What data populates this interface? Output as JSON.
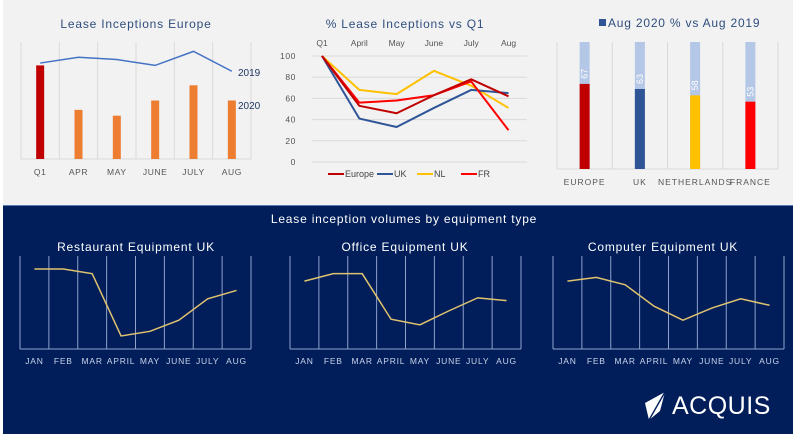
{
  "brand": {
    "name": "ACQUIS",
    "logo_icon": "acquis-kite-logo-icon"
  },
  "colors": {
    "top_bg": "#f2f2f2",
    "bottom_bg": "#011e5a",
    "europe": "#c00000",
    "uk": "#2f5597",
    "nl": "#ffc000",
    "fr": "#ff0000",
    "bars_2020": "#ed7d31",
    "line_2019": "#4472c4",
    "bar_bg": "#b4c7e7",
    "gold_line": "#e0c36e"
  },
  "section_title": "Lease inception volumes by equipment type",
  "chart_data": [
    {
      "id": "europe",
      "type": "bar",
      "title": "Lease Inceptions Europe",
      "categories": [
        "Q1",
        "APR",
        "MAY",
        "JUNE",
        "JULY",
        "AUG"
      ],
      "series": [
        {
          "name": "2020",
          "kind": "bar",
          "values": [
            80,
            42,
            37,
            50,
            63,
            50
          ],
          "colors": [
            "#c00000",
            "#ed7d31",
            "#ed7d31",
            "#ed7d31",
            "#ed7d31",
            "#ed7d31"
          ]
        },
        {
          "name": "2019",
          "kind": "line",
          "values": [
            82,
            87,
            85,
            80,
            92,
            75
          ]
        }
      ],
      "series_labels": [
        "2019",
        "2020"
      ],
      "ylim": [
        0,
        100
      ],
      "grid": "vertical",
      "legend": "inline-right"
    },
    {
      "id": "pct_q1",
      "type": "line",
      "title": "% Lease Inceptions vs Q1",
      "categories": [
        "Q1",
        "April",
        "May",
        "June",
        "July",
        "Aug"
      ],
      "series": [
        {
          "name": "Europe",
          "values": [
            100,
            53,
            46,
            63,
            78,
            62
          ]
        },
        {
          "name": "UK",
          "values": [
            100,
            41,
            33,
            51,
            68,
            65
          ]
        },
        {
          "name": "NL",
          "values": [
            100,
            68,
            64,
            86,
            72,
            51
          ]
        },
        {
          "name": "FR",
          "values": [
            100,
            56,
            58,
            63,
            76,
            30
          ]
        }
      ],
      "yticks": [
        "0",
        "20",
        "40",
        "60",
        "80",
        "100"
      ],
      "ylim": [
        0,
        100
      ],
      "grid": "horizontal",
      "legend": "bottom"
    },
    {
      "id": "aug_vs_2019",
      "type": "bar",
      "title": "Aug 2020 % vs Aug 2019",
      "legend_label": "Aug 2020 % vs Aug 2019",
      "categories": [
        "EUROPE",
        "UK",
        "NETHERLANDS",
        "FRANCE"
      ],
      "values": [
        67,
        63,
        58,
        53
      ],
      "data_labels": [
        "67",
        "63",
        "58",
        "53"
      ],
      "ylim": [
        0,
        100
      ],
      "grid": "vertical",
      "legend": "top"
    },
    {
      "id": "restaurant",
      "type": "line",
      "title": "Restaurant Equipment UK",
      "categories": [
        "JAN",
        "FEB",
        "MAR",
        "APRIL",
        "MAY",
        "JUNE",
        "JULY",
        "AUG"
      ],
      "values": [
        86,
        86,
        81,
        14,
        19,
        31,
        54,
        63
      ],
      "ylim": [
        0,
        100
      ],
      "grid": "vertical"
    },
    {
      "id": "office",
      "type": "line",
      "title": "Office Equipment UK",
      "categories": [
        "JAN",
        "FEB",
        "MAR",
        "APRIL",
        "MAY",
        "JUNE",
        "JULY",
        "AUG"
      ],
      "values": [
        73,
        81,
        81,
        32,
        26,
        41,
        55,
        52
      ],
      "ylim": [
        0,
        100
      ],
      "grid": "vertical"
    },
    {
      "id": "computer",
      "type": "line",
      "title": "Computer Equipment UK",
      "categories": [
        "JAN",
        "FEB",
        "MAR",
        "APRIL",
        "MAY",
        "JUNE",
        "JULY",
        "AUG"
      ],
      "values": [
        73,
        77,
        69,
        46,
        31,
        44,
        54,
        47
      ],
      "ylim": [
        0,
        100
      ],
      "grid": "vertical"
    }
  ]
}
